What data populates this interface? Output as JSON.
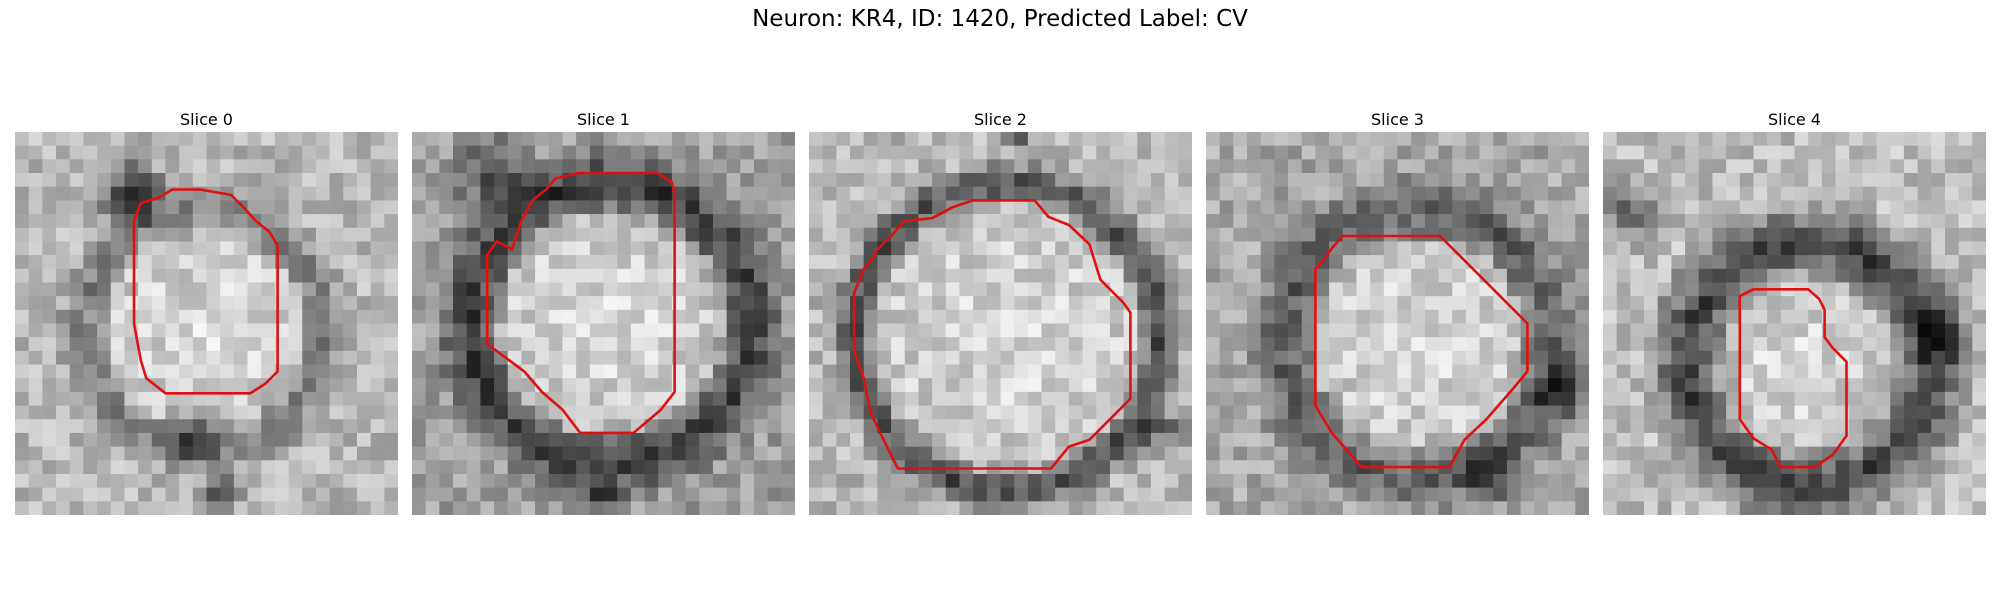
{
  "figure": {
    "title": "Neuron: KR4, ID: 1420, Predicted Label: CV",
    "contour_color": "#e01010"
  },
  "slices": [
    {
      "title": "Slice 0"
    },
    {
      "title": "Slice 1"
    },
    {
      "title": "Slice 2"
    },
    {
      "title": "Slice 3"
    },
    {
      "title": "Slice 4"
    }
  ]
}
